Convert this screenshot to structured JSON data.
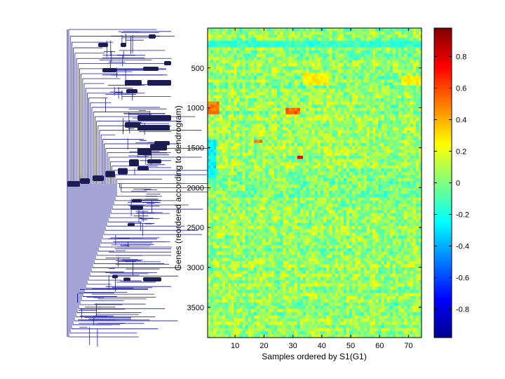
{
  "chart_data": {
    "type": "heatmap",
    "xlabel": "Samples ordered by S1(G1)",
    "ylabel": "Genes (reordered according to dendrogram)",
    "xlim": [
      0.5,
      74.5
    ],
    "ylim": [
      0.5,
      3880
    ],
    "x_ticks": [
      10,
      20,
      30,
      40,
      50,
      60,
      70
    ],
    "y_ticks": [
      500,
      1000,
      1500,
      2000,
      2500,
      3000,
      3500
    ],
    "n_samples": 74,
    "n_genes": 3880,
    "colorbar": {
      "colormap": "jet",
      "range": [
        -0.98,
        0.98
      ],
      "ticks": [
        -0.8,
        -0.6,
        -0.4,
        -0.2,
        0,
        0.2,
        0.4,
        0.6,
        0.8
      ],
      "tick_labels": [
        "-0.8",
        "-0.6",
        "-0.4",
        "-0.2",
        "0",
        "0.2",
        "0.4",
        "0.6",
        "0.8"
      ]
    },
    "notable_regions": [
      {
        "genes": [
          920,
          1100
        ],
        "samples": [
          1,
          4
        ],
        "value": 0.5
      },
      {
        "genes": [
          1020,
          1080
        ],
        "samples": [
          28,
          32
        ],
        "value": 0.55
      },
      {
        "genes": [
          1410,
          1460
        ],
        "samples": [
          17,
          19
        ],
        "value": 0.5
      },
      {
        "genes": [
          1590,
          1640
        ],
        "samples": [
          32,
          33
        ],
        "value": 0.7
      },
      {
        "genes": [
          560,
          720
        ],
        "samples": [
          34,
          42
        ],
        "value": 0.25
      },
      {
        "genes": [
          600,
          720
        ],
        "samples": [
          68,
          74
        ],
        "value": 0.25
      },
      {
        "genes": [
          150,
          260
        ],
        "samples": [
          1,
          74
        ],
        "value": -0.15
      },
      {
        "genes": [
          1400,
          1900
        ],
        "samples": [
          1,
          3
        ],
        "value": -0.25
      }
    ],
    "dendrogram": {
      "orientation": "left",
      "color": "#1a1a9a",
      "leaves": 3880
    }
  }
}
